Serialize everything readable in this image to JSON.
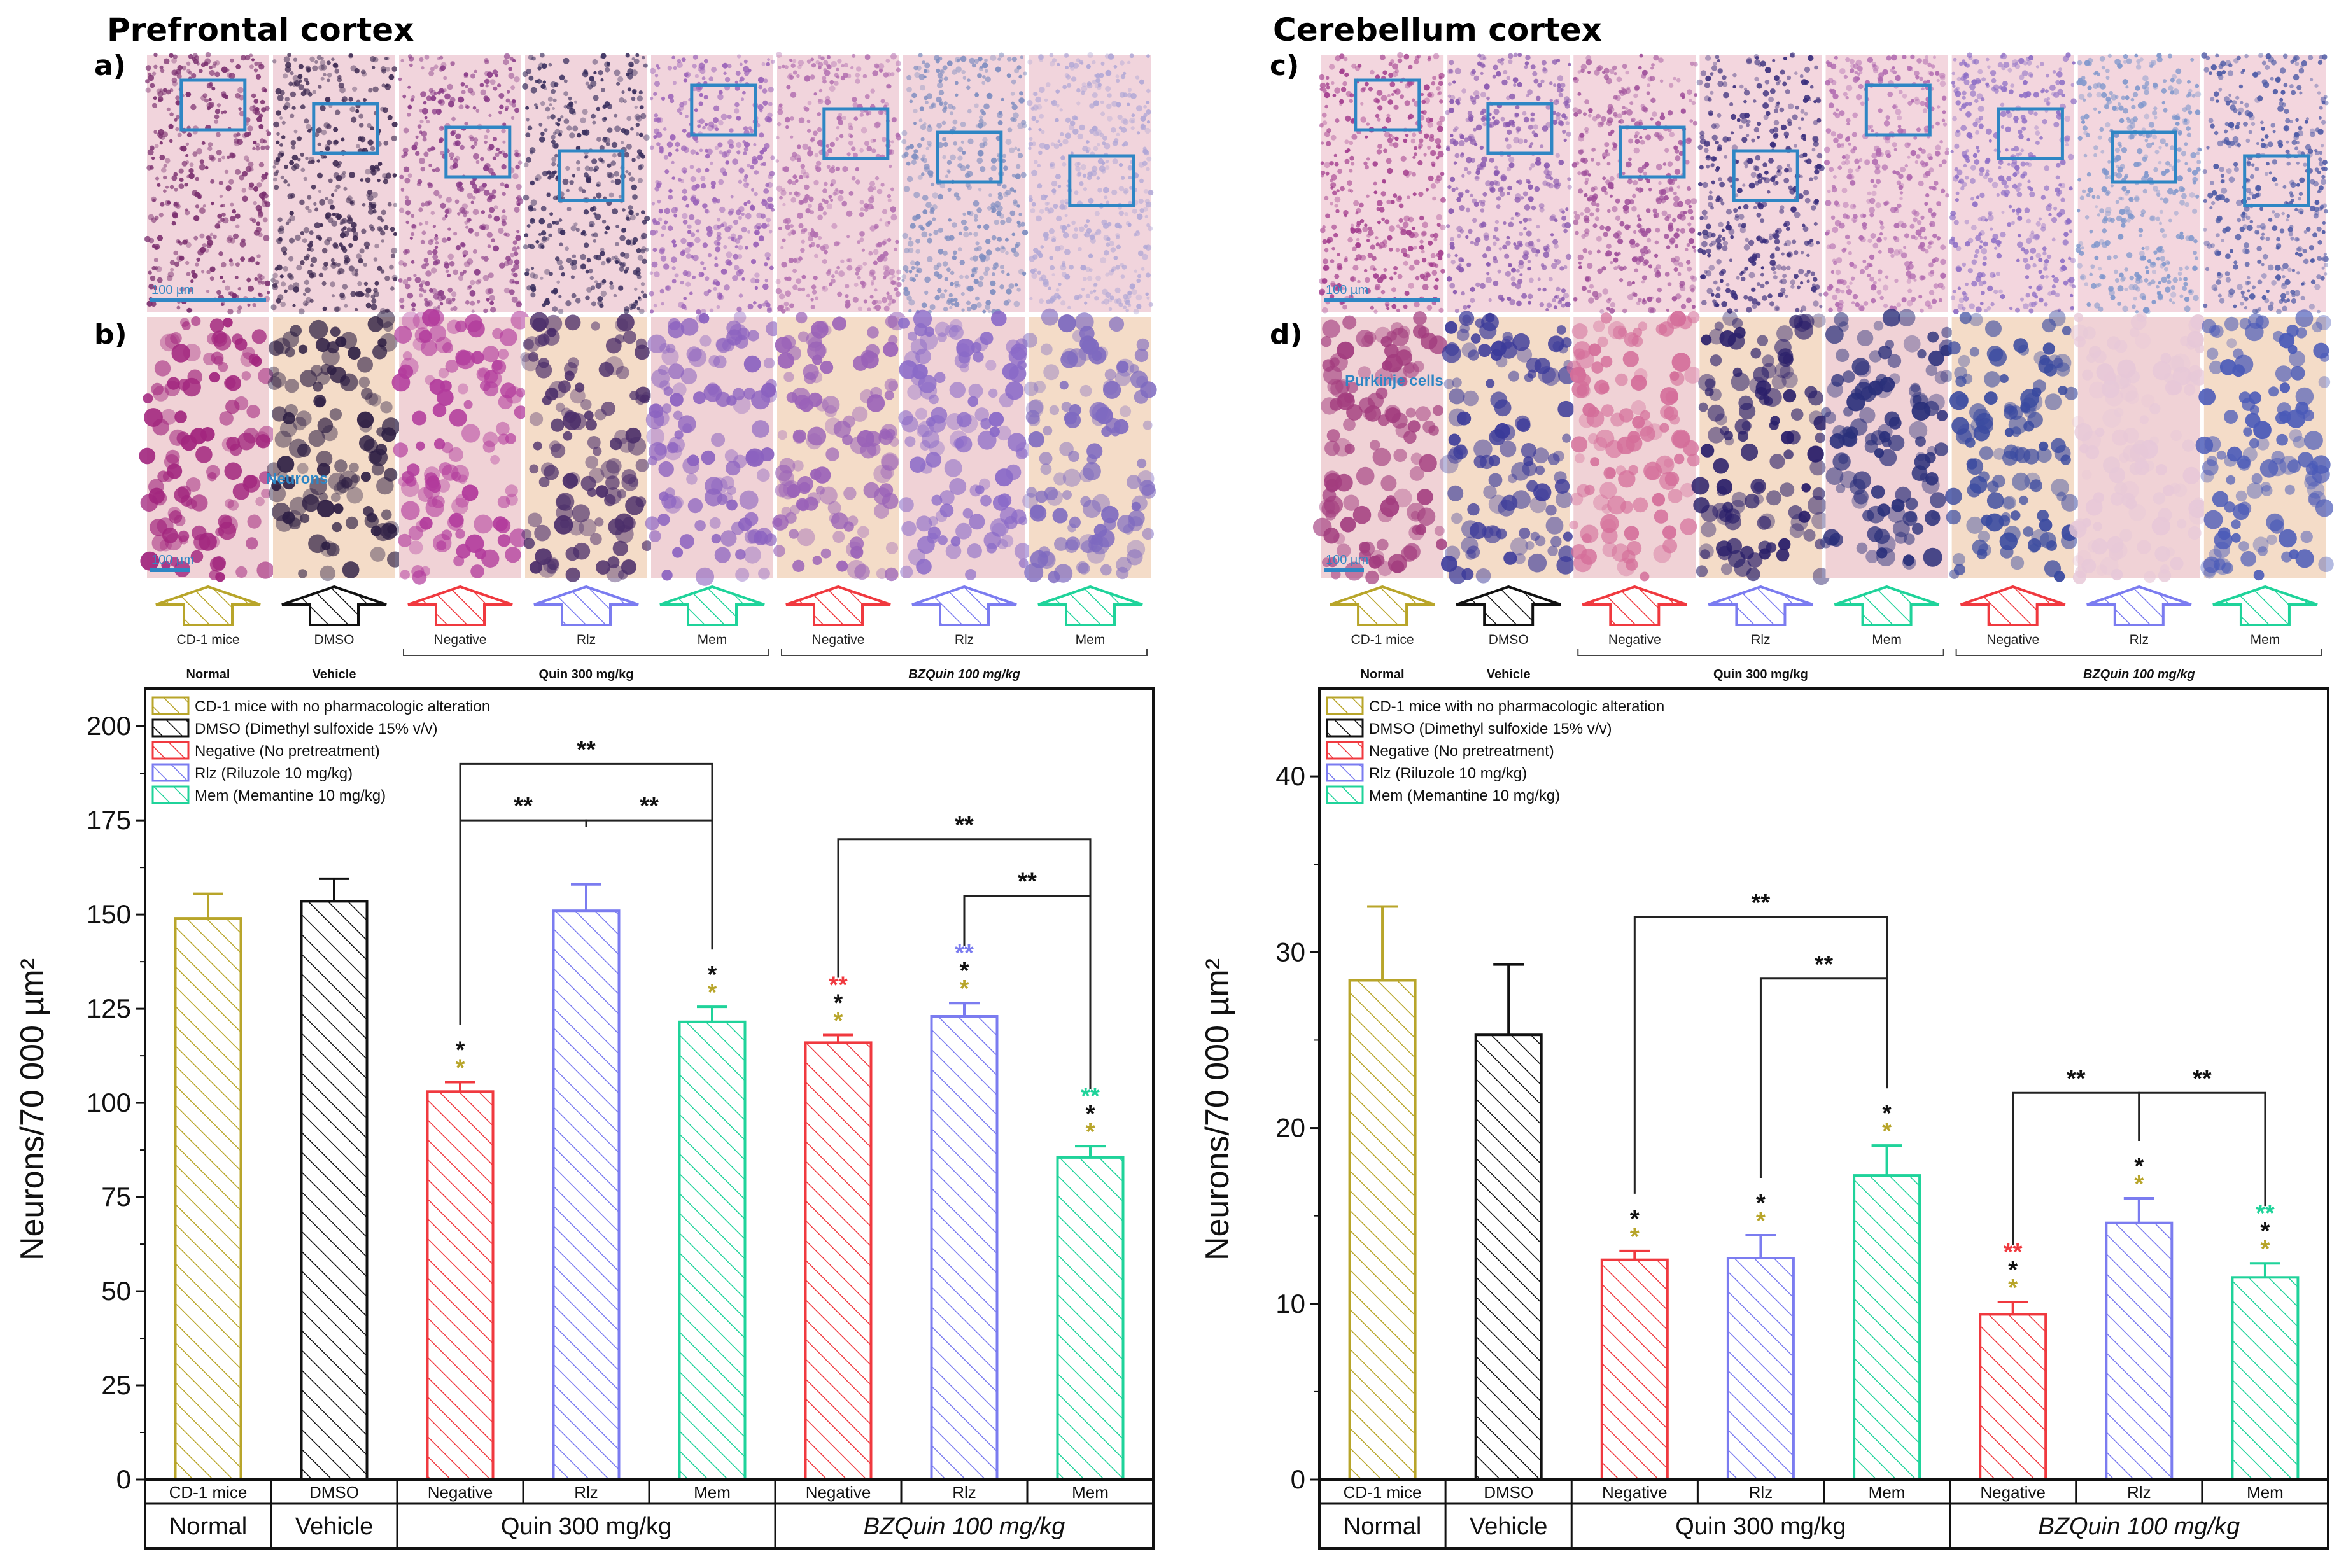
{
  "figure": {
    "sections": [
      {
        "title": "Prefrontal cortex",
        "panel_top": "a)",
        "panel_bottom": "b)",
        "scale_top": "100 µm",
        "scale_bottom": "100 µm",
        "annotation": "Neurons"
      },
      {
        "title": "Cerebellum cortex",
        "panel_top": "c)",
        "panel_bottom": "d)",
        "scale_top": "100 µm",
        "scale_bottom": "100 µm",
        "annotation": "Purkinje cells"
      }
    ],
    "arrow_labels": [
      "CD-1 mice",
      "DMSO",
      "Negative",
      "Rlz",
      "Mem",
      "Negative",
      "Rlz",
      "Mem"
    ],
    "arrow_groups": [
      "Normal",
      "Vehicle",
      "Quin 300 mg/kg",
      "BZQuin 100 mg/kg"
    ],
    "legend": [
      {
        "label": "CD-1 mice with no pharmacologic alteration",
        "color": "#B8A52A"
      },
      {
        "label": "DMSO (Dimethyl sulfoxide 15% v/v)",
        "color": "#111111"
      },
      {
        "label": "Negative (No pretreatment)",
        "color": "#F0393F"
      },
      {
        "label": "Rlz (Riluzole 10 mg/kg)",
        "color": "#7B7CF0"
      },
      {
        "label": "Mem (Memantine 10 mg/kg)",
        "color": "#1FD39A"
      }
    ],
    "colors": {
      "normal": "#B8A52A",
      "vehicle": "#111111",
      "negative": "#F0393F",
      "rlz": "#7B7CF0",
      "mem": "#1FD39A",
      "tissue_pink": "#D98BC0",
      "tissue_purple": "#5A3A9A",
      "roi_box": "#2F86C4"
    }
  },
  "chart_data": [
    {
      "type": "bar",
      "title": "Prefrontal cortex",
      "ylabel": "Neurons/70 000 µm²",
      "ylim": [
        0,
        210
      ],
      "yticks": [
        0,
        25,
        50,
        75,
        100,
        125,
        150,
        175,
        200
      ],
      "categories": [
        "CD-1 mice",
        "DMSO",
        "Negative",
        "Rlz",
        "Mem",
        "Negative",
        "Rlz",
        "Mem"
      ],
      "groups": [
        "Normal",
        "Vehicle",
        "Quin 300 mg/kg",
        "BZQuin 100 mg/kg"
      ],
      "values": [
        149,
        153.5,
        103,
        151,
        121.5,
        116,
        123,
        85.5
      ],
      "errors": [
        6.5,
        6,
        2.5,
        7,
        4,
        2,
        3.5,
        3
      ],
      "series_keys": [
        "normal",
        "vehicle",
        "negative",
        "rlz",
        "mem",
        "negative",
        "rlz",
        "mem"
      ],
      "bar_stars": [
        [],
        [],
        [
          "*",
          "*"
        ],
        [],
        [
          "*",
          "*"
        ],
        [
          "**",
          "*",
          "*"
        ],
        [
          "**",
          "*",
          "*"
        ],
        [
          "**",
          "*",
          "*"
        ]
      ],
      "bar_star_colors": [
        [],
        [],
        [
          "#111111",
          "#B8A52A"
        ],
        [],
        [
          "#111111",
          "#B8A52A"
        ],
        [
          "#F0393F",
          "#111111",
          "#B8A52A"
        ],
        [
          "#7B7CF0",
          "#111111",
          "#B8A52A"
        ],
        [
          "#1FD39A",
          "#111111",
          "#B8A52A"
        ]
      ],
      "brackets": [
        {
          "from": 2,
          "to": 3,
          "y": 175,
          "label": "**"
        },
        {
          "from": 3,
          "to": 4,
          "y": 175,
          "label": "**"
        },
        {
          "from": 2,
          "to": 4,
          "y": 190,
          "label": "**"
        },
        {
          "from": 6,
          "to": 7,
          "y": 155,
          "label": "**"
        },
        {
          "from": 5,
          "to": 7,
          "y": 170,
          "label": "**"
        }
      ]
    },
    {
      "type": "bar",
      "title": "Cerebellum cortex",
      "ylabel": "Neurons/70 000 µm²",
      "ylim": [
        0,
        45
      ],
      "yticks": [
        0,
        10,
        20,
        30,
        40
      ],
      "categories": [
        "CD-1 mice",
        "DMSO",
        "Negative",
        "Rlz",
        "Mem",
        "Negative",
        "Rlz",
        "Mem"
      ],
      "groups": [
        "Normal",
        "Vehicle",
        "Quin 300 mg/kg",
        "BZQuin 100 mg/kg"
      ],
      "values": [
        28.4,
        25.3,
        12.5,
        12.6,
        17.3,
        9.4,
        14.6,
        11.5
      ],
      "errors": [
        4.2,
        4,
        0.5,
        1.3,
        1.7,
        0.7,
        1.4,
        0.8
      ],
      "series_keys": [
        "normal",
        "vehicle",
        "negative",
        "rlz",
        "mem",
        "negative",
        "rlz",
        "mem"
      ],
      "bar_stars": [
        [],
        [],
        [
          "*",
          "*"
        ],
        [
          "*",
          "*"
        ],
        [
          "*",
          "*"
        ],
        [
          "**",
          "*",
          "*"
        ],
        [
          "*",
          "*"
        ],
        [
          "**",
          "*",
          "*"
        ]
      ],
      "bar_star_colors": [
        [],
        [],
        [
          "#111111",
          "#B8A52A"
        ],
        [
          "#111111",
          "#B8A52A"
        ],
        [
          "#111111",
          "#B8A52A"
        ],
        [
          "#F0393F",
          "#111111",
          "#B8A52A"
        ],
        [
          "#111111",
          "#B8A52A"
        ],
        [
          "#1FD39A",
          "#111111",
          "#B8A52A"
        ]
      ],
      "brackets": [
        {
          "from": 3,
          "to": 4,
          "y": 28.5,
          "label": "**"
        },
        {
          "from": 2,
          "to": 4,
          "y": 32,
          "label": "**"
        },
        {
          "from": 5,
          "to": 6,
          "y": 22,
          "label": "**"
        },
        {
          "from": 6,
          "to": 7,
          "y": 22,
          "label": "**"
        }
      ]
    }
  ]
}
